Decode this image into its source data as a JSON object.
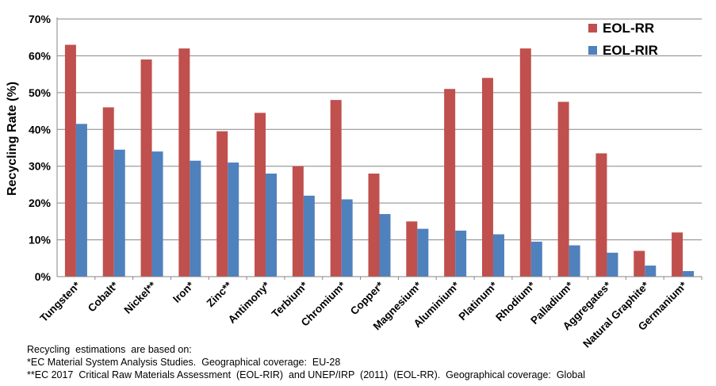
{
  "chart_data": {
    "type": "bar",
    "ylabel": "Recycling Rate (%)",
    "ylim": [
      0,
      70
    ],
    "yticks": [
      "0%",
      "10%",
      "20%",
      "30%",
      "40%",
      "50%",
      "60%",
      "70%"
    ],
    "grid": true,
    "legend_position": "top-right",
    "categories": [
      "Tungsten*",
      "Cobalt*",
      "Nickel**",
      "Iron*",
      "Zinc**",
      "Antimony*",
      "Terbium*",
      "Chromium*",
      "Copper*",
      "Magnesium*",
      "Aluminium*",
      "Platinum*",
      "Rhodium*",
      "Palladium*",
      "Aggregates*",
      "Natural Graphite*",
      "Germanium*"
    ],
    "series": [
      {
        "name": "EOL-RR",
        "color": "#c0504d",
        "values": [
          63,
          46,
          59,
          62,
          39.5,
          44.5,
          30,
          48,
          28,
          15,
          51,
          54,
          62,
          47.5,
          33.5,
          7,
          12
        ]
      },
      {
        "name": "EOL-RIR",
        "color": "#4f81bd",
        "values": [
          41.5,
          34.5,
          34,
          31.5,
          31,
          28,
          22,
          21,
          17,
          13,
          12.5,
          11.5,
          9.5,
          8.5,
          6.5,
          3,
          1.5
        ]
      }
    ]
  },
  "notes": {
    "line1": "Recycling  estimations  are based on:",
    "line2": "*EC Material System Analysis Studies.  Geographical coverage:  EU-28",
    "line3": "**EC 2017  Critical Raw Materials Assessment  (EOL-RIR)  and UNEP/IRP  (2011)  (EOL-RR).  Geographical coverage:  Global"
  }
}
